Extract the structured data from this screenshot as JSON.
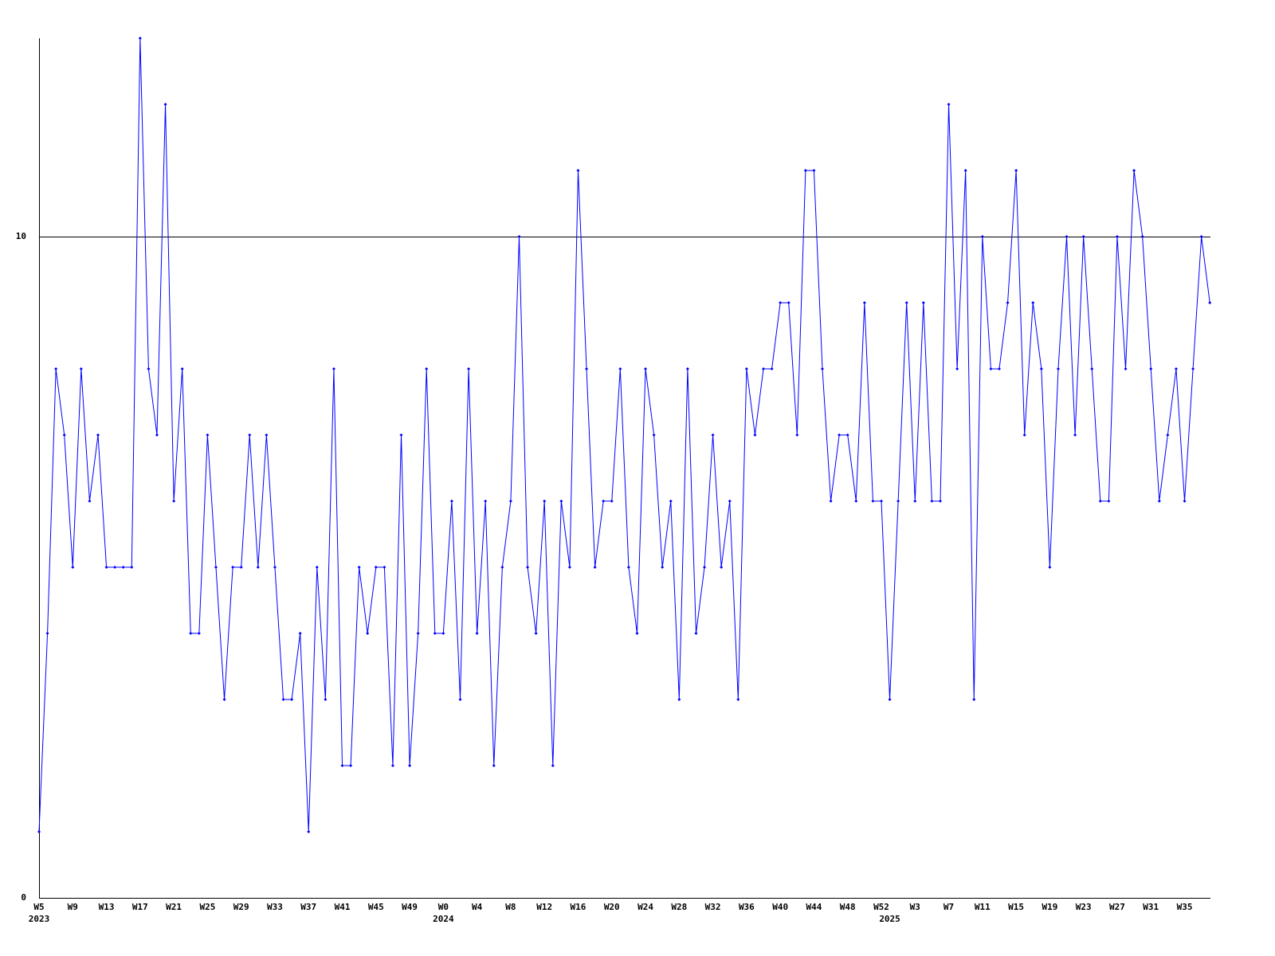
{
  "chart_data": {
    "type": "line",
    "categories": [
      "W5",
      null,
      null,
      null,
      "W9",
      null,
      null,
      null,
      "W13",
      null,
      null,
      null,
      "W17",
      null,
      null,
      null,
      "W21",
      null,
      null,
      null,
      "W25",
      null,
      null,
      null,
      "W29",
      null,
      null,
      null,
      "W33",
      null,
      null,
      null,
      "W37",
      null,
      null,
      null,
      "W41",
      null,
      null,
      null,
      "W45",
      null,
      null,
      null,
      "W49",
      null,
      null,
      null,
      "W0",
      null,
      null,
      null,
      "W4",
      null,
      null,
      null,
      "W8",
      null,
      null,
      null,
      "W12",
      null,
      null,
      null,
      "W16",
      null,
      null,
      null,
      "W20",
      null,
      null,
      null,
      "W24",
      null,
      null,
      null,
      "W28",
      null,
      null,
      null,
      "W32",
      null,
      null,
      null,
      "W36",
      null,
      null,
      null,
      "W40",
      null,
      null,
      null,
      "W44",
      null,
      null,
      null,
      "W48",
      null,
      null,
      null,
      "W52",
      null,
      null,
      null,
      "W3",
      null,
      null,
      null,
      "W7",
      null,
      null,
      null,
      "W11",
      null,
      null,
      null,
      "W15",
      null,
      null,
      null,
      "W19",
      null,
      null,
      null,
      "W23",
      null,
      null,
      null,
      "W27",
      null,
      null,
      null,
      "W31",
      null,
      null,
      null,
      "W35",
      null,
      null,
      null
    ],
    "year_labels": [
      {
        "index": 0,
        "label": "2023"
      },
      {
        "index": 48,
        "label": "2024"
      },
      {
        "index": 101,
        "label": "2025"
      }
    ],
    "series": [
      {
        "color": "#0000ff",
        "values": [
          1,
          4,
          8,
          7,
          5,
          8,
          6,
          7,
          5,
          5,
          5,
          5,
          13,
          8,
          7,
          12,
          6,
          8,
          4,
          4,
          7,
          5,
          3,
          5,
          5,
          7,
          5,
          7,
          5,
          3,
          3,
          4,
          1,
          5,
          3,
          8,
          2,
          2,
          5,
          4,
          5,
          5,
          2,
          7,
          2,
          4,
          8,
          4,
          4,
          6,
          3,
          8,
          4,
          6,
          2,
          5,
          6,
          10,
          5,
          4,
          6,
          2,
          6,
          5,
          11,
          8,
          5,
          6,
          6,
          8,
          5,
          4,
          8,
          7,
          5,
          6,
          3,
          8,
          4,
          5,
          7,
          5,
          6,
          3,
          8,
          7,
          8,
          8,
          9,
          9,
          7,
          11,
          11,
          8,
          6,
          7,
          7,
          6,
          9,
          6,
          6,
          3,
          6,
          9,
          6,
          9,
          6,
          6,
          12,
          8,
          11,
          3,
          10,
          8,
          8,
          9,
          11,
          7,
          9,
          8,
          5,
          8,
          10,
          7,
          10,
          8,
          6,
          6,
          10,
          8,
          11,
          10,
          8,
          6,
          7,
          8,
          6,
          8,
          10,
          9
        ]
      }
    ],
    "ylim": [
      0,
      13
    ],
    "yticks": [
      0,
      10
    ],
    "grid": true
  }
}
